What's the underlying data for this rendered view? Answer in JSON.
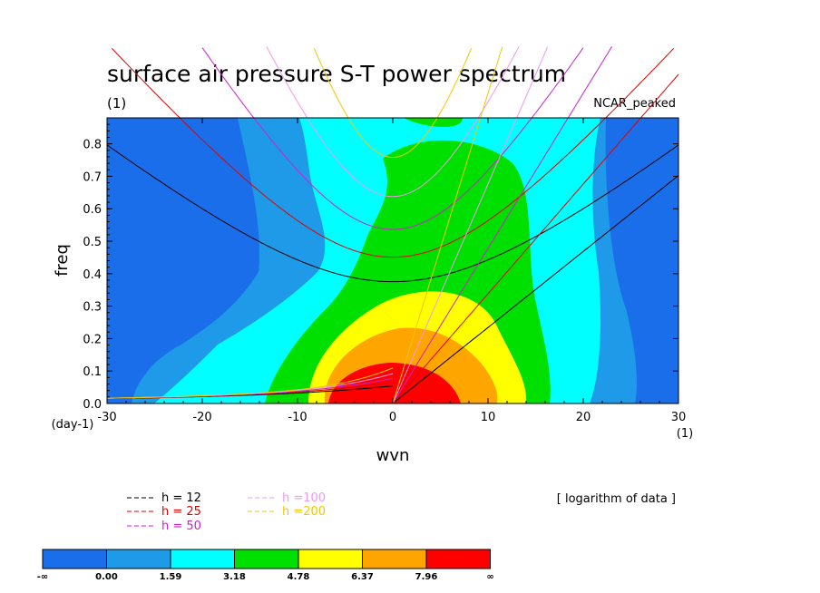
{
  "chart_data": {
    "type": "heatmap",
    "title": "surface air pressure S-T power spectrum",
    "subtitle_left": "(1)",
    "subtitle_right": "NCAR_peaked",
    "xlabel": "wvn",
    "ylabel": "freq",
    "x_unit": "(1)",
    "y_unit": "(day-1)",
    "xlim": [
      -30,
      30
    ],
    "ylim": [
      0,
      0.88
    ],
    "xticks": [
      "-30",
      "-20",
      "-10",
      "0",
      "10",
      "20",
      "30"
    ],
    "yticks": [
      "0.0",
      "0.1",
      "0.2",
      "0.3",
      "0.4",
      "0.5",
      "0.6",
      "0.7",
      "0.8"
    ],
    "data_note": "[ logarithm of data ]",
    "colorbar": {
      "labels": [
        "-∞",
        "0.00",
        "1.59",
        "3.18",
        "4.78",
        "6.37",
        "7.96",
        "∞"
      ],
      "colors": [
        "#1a6eea",
        "#1e9ae8",
        "#00ffff",
        "#00e000",
        "#ffff00",
        "#ffa500",
        "#ff0000"
      ]
    },
    "dispersion_legend": [
      {
        "label": "h = 12",
        "color": "#000000"
      },
      {
        "label": "h = 25",
        "color": "#e00000"
      },
      {
        "label": "h = 50",
        "color": "#cc22cc"
      },
      {
        "label": "h =100",
        "color": "#ee99ee"
      },
      {
        "label": "h =200",
        "color": "#f0c800"
      }
    ],
    "dispersion_h": [
      12,
      25,
      50,
      100,
      200
    ]
  }
}
